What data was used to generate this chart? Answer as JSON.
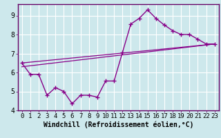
{
  "xlabel": "Windchill (Refroidissement éolien,°C)",
  "background_color": "#cde8ec",
  "grid_color": "#ffffff",
  "line_color": "#880088",
  "spine_color": "#660066",
  "xlim": [
    -0.5,
    23.5
  ],
  "ylim": [
    4.0,
    9.6
  ],
  "yticks": [
    4,
    5,
    6,
    7,
    8,
    9
  ],
  "xticks": [
    0,
    1,
    2,
    3,
    4,
    5,
    6,
    7,
    8,
    9,
    10,
    11,
    12,
    13,
    14,
    15,
    16,
    17,
    18,
    19,
    20,
    21,
    22,
    23
  ],
  "series1_x": [
    0,
    1,
    2,
    3,
    4,
    5,
    6,
    7,
    8,
    9,
    10,
    11,
    12,
    13,
    14,
    15,
    16,
    17,
    18,
    19,
    20,
    21,
    22,
    23
  ],
  "series1_y": [
    6.5,
    5.9,
    5.9,
    4.8,
    5.2,
    5.0,
    4.35,
    4.8,
    4.8,
    4.7,
    5.55,
    5.55,
    7.05,
    8.55,
    8.85,
    9.3,
    8.85,
    8.5,
    8.2,
    8.0,
    8.0,
    7.75,
    7.5,
    7.5
  ],
  "series2_x": [
    0,
    23
  ],
  "series2_y": [
    6.3,
    7.5
  ],
  "series3_x": [
    0,
    23
  ],
  "series3_y": [
    6.5,
    7.5
  ],
  "tick_fontsize": 6.5,
  "label_fontsize": 7.0
}
